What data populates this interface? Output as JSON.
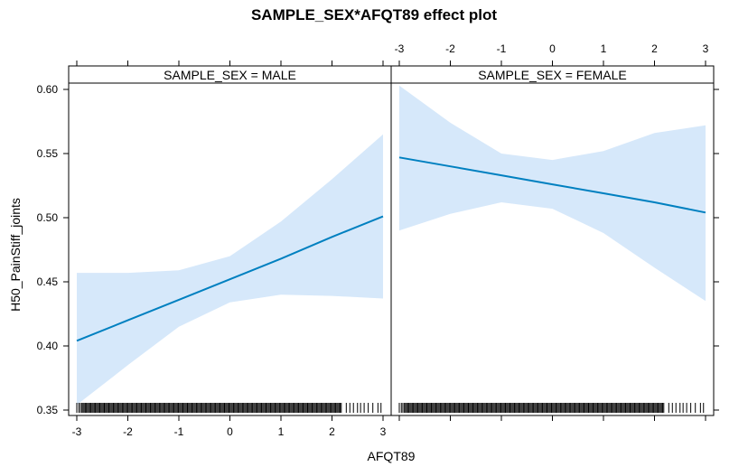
{
  "chart_data": {
    "type": "line",
    "title": "SAMPLE_SEX*AFQT89 effect plot",
    "xlabel": "AFQT89",
    "ylabel": "H50_PainStiff_joints",
    "xlim": [
      -3,
      3
    ],
    "ylim": [
      0.35,
      0.61
    ],
    "x_ticks": [
      "-3",
      "-2",
      "-1",
      "0",
      "1",
      "2",
      "3"
    ],
    "y_ticks": [
      "0.35",
      "0.40",
      "0.45",
      "0.50",
      "0.55",
      "0.60"
    ],
    "grid": false,
    "colors": {
      "line": "#0080C0",
      "band": "#D6E8FA",
      "frame": "#000000",
      "strip": "#FFFFFF",
      "rug": "#000000"
    },
    "panels": [
      {
        "strip_label": "SAMPLE_SEX = MALE",
        "x": [
          -3,
          -2,
          -1,
          0,
          1,
          2,
          3
        ],
        "fit": [
          0.404,
          0.42,
          0.436,
          0.452,
          0.468,
          0.485,
          0.501
        ],
        "lower": [
          0.354,
          0.385,
          0.415,
          0.434,
          0.44,
          0.439,
          0.437
        ],
        "upper": [
          0.457,
          0.457,
          0.459,
          0.47,
          0.497,
          0.53,
          0.565
        ]
      },
      {
        "strip_label": "SAMPLE_SEX = FEMALE",
        "x": [
          -3,
          -2,
          -1,
          0,
          1,
          2,
          3
        ],
        "fit": [
          0.547,
          0.54,
          0.533,
          0.526,
          0.519,
          0.512,
          0.504
        ],
        "lower": [
          0.49,
          0.503,
          0.512,
          0.507,
          0.488,
          0.461,
          0.435
        ],
        "upper": [
          0.603,
          0.574,
          0.55,
          0.545,
          0.552,
          0.566,
          0.572
        ]
      }
    ],
    "rug": {
      "dense": [
        -2.9,
        2.2
      ],
      "sparse": [
        -3.0,
        -2.96,
        -2.93,
        2.28,
        2.35,
        2.42,
        2.5,
        2.56,
        2.63,
        2.71,
        2.8,
        2.9,
        2.96
      ]
    }
  }
}
